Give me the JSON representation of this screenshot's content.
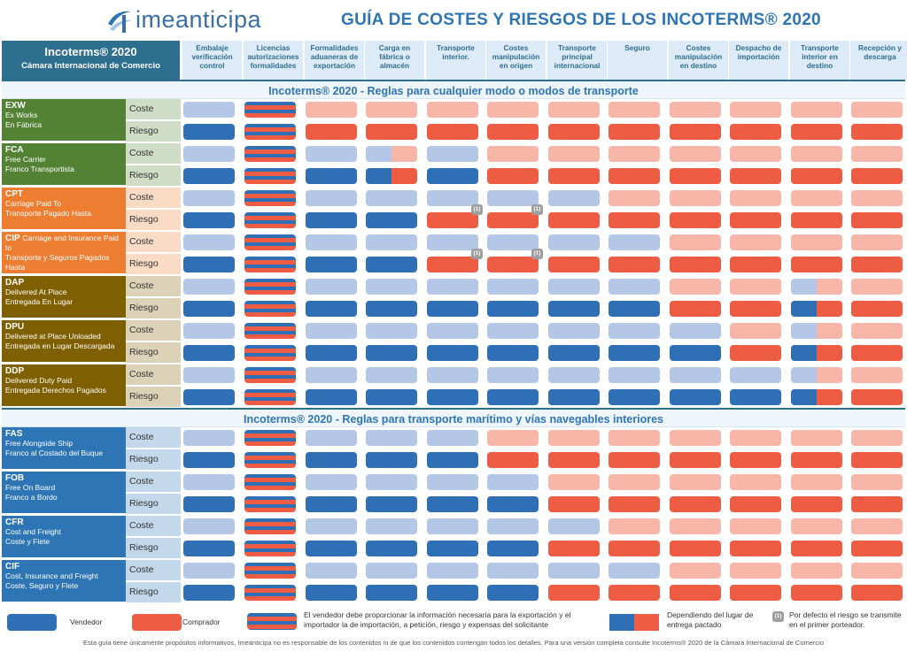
{
  "header": {
    "logo_text": "imeanticipa",
    "title": "GUÍA DE COSTES Y RIESGOS DE LOS INCOTERMS® 2020",
    "left_title": "Incoterms® 2020",
    "left_subtitle": "Cámara Internacional de Comercio",
    "columns": [
      "Embalaje verificación control",
      "Licencias autorizaciones formalidades",
      "Formalidades aduaneras de exportación",
      "Carga en fábrica o almacén",
      "Transporte interior.",
      "Costes manipulación en origen",
      "Transporte principal internacional",
      "Seguro",
      "Costes manipulación en destino",
      "Despacho de importación",
      "Transporte interior en destino",
      "Recepción y descarga"
    ]
  },
  "sections": [
    {
      "title": "Incoterms® 2020 - Reglas para cualquier modo o modos de transporte"
    },
    {
      "title": "Incoterms® 2020 - Reglas para transporte marítimo y vías navegables interiores"
    }
  ],
  "row_labels": {
    "cost": "Coste",
    "risk": "Riesgo"
  },
  "terms": [
    {
      "code": "EXW",
      "en": "Ex Works",
      "es": "En Fábrica",
      "color": "#548235",
      "cost": [
        "lv",
        "striped",
        "lc",
        "lc",
        "lc",
        "lc",
        "lc",
        "lc",
        "lc",
        "lc",
        "lc",
        "lc"
      ],
      "risk": [
        "dv",
        "striped",
        "dc",
        "dc",
        "dc",
        "dc",
        "dc",
        "dc",
        "dc",
        "dc",
        "dc",
        "dc"
      ]
    },
    {
      "code": "FCA",
      "en": "Free Carrier",
      "es": "Franco Transportista",
      "color": "#548235",
      "cost": [
        "lv",
        "striped",
        "lv",
        "split-light",
        "lv",
        "lc",
        "lc",
        "lc",
        "lc",
        "lc",
        "lc",
        "lc"
      ],
      "risk": [
        "dv",
        "striped",
        "dv",
        "split-dark",
        "dv",
        "dc",
        "dc",
        "dc",
        "dc",
        "dc",
        "dc",
        "dc"
      ]
    },
    {
      "code": "CPT",
      "en": "Carriage Paid To",
      "es": "Transporte Pagado Hasta",
      "color": "#ed7d31",
      "cost": [
        "lv",
        "striped",
        "lv",
        "lv",
        "lv",
        "lv",
        "lv",
        "lc",
        "lc",
        "lc",
        "lc",
        "lc"
      ],
      "risk": [
        "dv",
        "striped",
        "dv",
        "dv",
        "dc",
        "dc",
        "dc",
        "dc",
        "dc",
        "dc",
        "dc",
        "dc"
      ]
    },
    {
      "code": "CIP",
      "en": "Carriage and Insurance Paid to",
      "es": "Transporte y Seguros Pagados Hasta",
      "color": "#ed7d31",
      "cost": [
        "lv",
        "striped",
        "lv",
        "lv",
        "lv",
        "lv",
        "lv",
        "lv",
        "lc",
        "lc",
        "lc",
        "lc"
      ],
      "risk": [
        "dv",
        "striped",
        "dv",
        "dv",
        "dc",
        "dc",
        "dc",
        "dc",
        "dc",
        "dc",
        "dc",
        "dc"
      ]
    },
    {
      "code": "DAP",
      "en": "Delivered At Place",
      "es": "Entregada En Lugar",
      "color": "#7f6000",
      "cost": [
        "lv",
        "striped",
        "lv",
        "lv",
        "lv",
        "lv",
        "lv",
        "lv",
        "lc",
        "lc",
        "split-light",
        "lc"
      ],
      "risk": [
        "dv",
        "striped",
        "dv",
        "dv",
        "dv",
        "dv",
        "dv",
        "dv",
        "dc",
        "dc",
        "split-dark",
        "dc"
      ]
    },
    {
      "code": "DPU",
      "en": "Delivered at Place Unloaded",
      "es": "Entregada en Lugar Descargada",
      "color": "#7f6000",
      "cost": [
        "lv",
        "striped",
        "lv",
        "lv",
        "lv",
        "lv",
        "lv",
        "lv",
        "lv",
        "lc",
        "split-light",
        "lc"
      ],
      "risk": [
        "dv",
        "striped",
        "dv",
        "dv",
        "dv",
        "dv",
        "dv",
        "dv",
        "dv",
        "dc",
        "split-dark",
        "dc"
      ]
    },
    {
      "code": "DDP",
      "en": "Delivered Duty Paid",
      "es": "Entregada Derechos Pagados",
      "color": "#7f6000",
      "cost": [
        "lv",
        "striped",
        "lv",
        "lv",
        "lv",
        "lv",
        "lv",
        "lv",
        "lv",
        "lv",
        "split-light",
        "lc"
      ],
      "risk": [
        "dv",
        "striped",
        "dv",
        "dv",
        "dv",
        "dv",
        "dv",
        "dv",
        "dv",
        "dv",
        "split-dark",
        "dc"
      ]
    },
    {
      "code": "FAS",
      "en": "Free Alongside Ship",
      "es": "Franco al Costado del Buque",
      "color": "#2e75b6",
      "cost": [
        "lv",
        "striped",
        "lv",
        "lv",
        "lv",
        "lc",
        "lc",
        "lc",
        "lc",
        "lc",
        "lc",
        "lc"
      ],
      "risk": [
        "dv",
        "striped",
        "dv",
        "dv",
        "dv",
        "dc",
        "dc",
        "dc",
        "dc",
        "dc",
        "dc",
        "dc"
      ]
    },
    {
      "code": "FOB",
      "en": "Free On Board",
      "es": "Franco a Bordo",
      "color": "#2e75b6",
      "cost": [
        "lv",
        "striped",
        "lv",
        "lv",
        "lv",
        "lv",
        "lc",
        "lc",
        "lc",
        "lc",
        "lc",
        "lc"
      ],
      "risk": [
        "dv",
        "striped",
        "dv",
        "dv",
        "dv",
        "dv",
        "dc",
        "dc",
        "dc",
        "dc",
        "dc",
        "dc"
      ]
    },
    {
      "code": "CFR",
      "en": "Cost and Freight",
      "es": "Coste y Flete",
      "color": "#2e75b6",
      "cost": [
        "lv",
        "striped",
        "lv",
        "lv",
        "lv",
        "lv",
        "lv",
        "lc",
        "lc",
        "lc",
        "lc",
        "lc"
      ],
      "risk": [
        "dv",
        "striped",
        "dv",
        "dv",
        "dv",
        "dv",
        "dc",
        "dc",
        "dc",
        "dc",
        "dc",
        "dc"
      ]
    },
    {
      "code": "CIF",
      "en": "Cost, Insurance and Freight",
      "es": "Coste, Seguro y Flete",
      "color": "#2e75b6",
      "cost": [
        "lv",
        "striped",
        "lv",
        "lv",
        "lv",
        "lv",
        "lv",
        "lv",
        "lc",
        "lc",
        "lc",
        "lc"
      ],
      "risk": [
        "dv",
        "striped",
        "dv",
        "dv",
        "dv",
        "dv",
        "dc",
        "dc",
        "dc",
        "dc",
        "dc",
        "dc"
      ]
    }
  ],
  "badge_text": "(1)",
  "legend": {
    "vendedor": "Vendedor",
    "comprador": "Comprador",
    "striped_note": "El vendedor debe proporcionar la información necesaria para la exportación y el importador la de importación, a petición, riesgo y expensas del solicitante",
    "split_note": "Dependiendo del lugar de entrega pactado",
    "badge_note": "Por defecto el riesgo se transmite en el primer porteador."
  },
  "footer": "Esta guía tiene únicamente propósitos informativos, Imeanticipa no es responsable de los contenidos ni de que los contenidos contengan todos los detalles. Para una versión completa consulte Incoterms® 2020 de la Cámara Internacional de Comercio"
}
